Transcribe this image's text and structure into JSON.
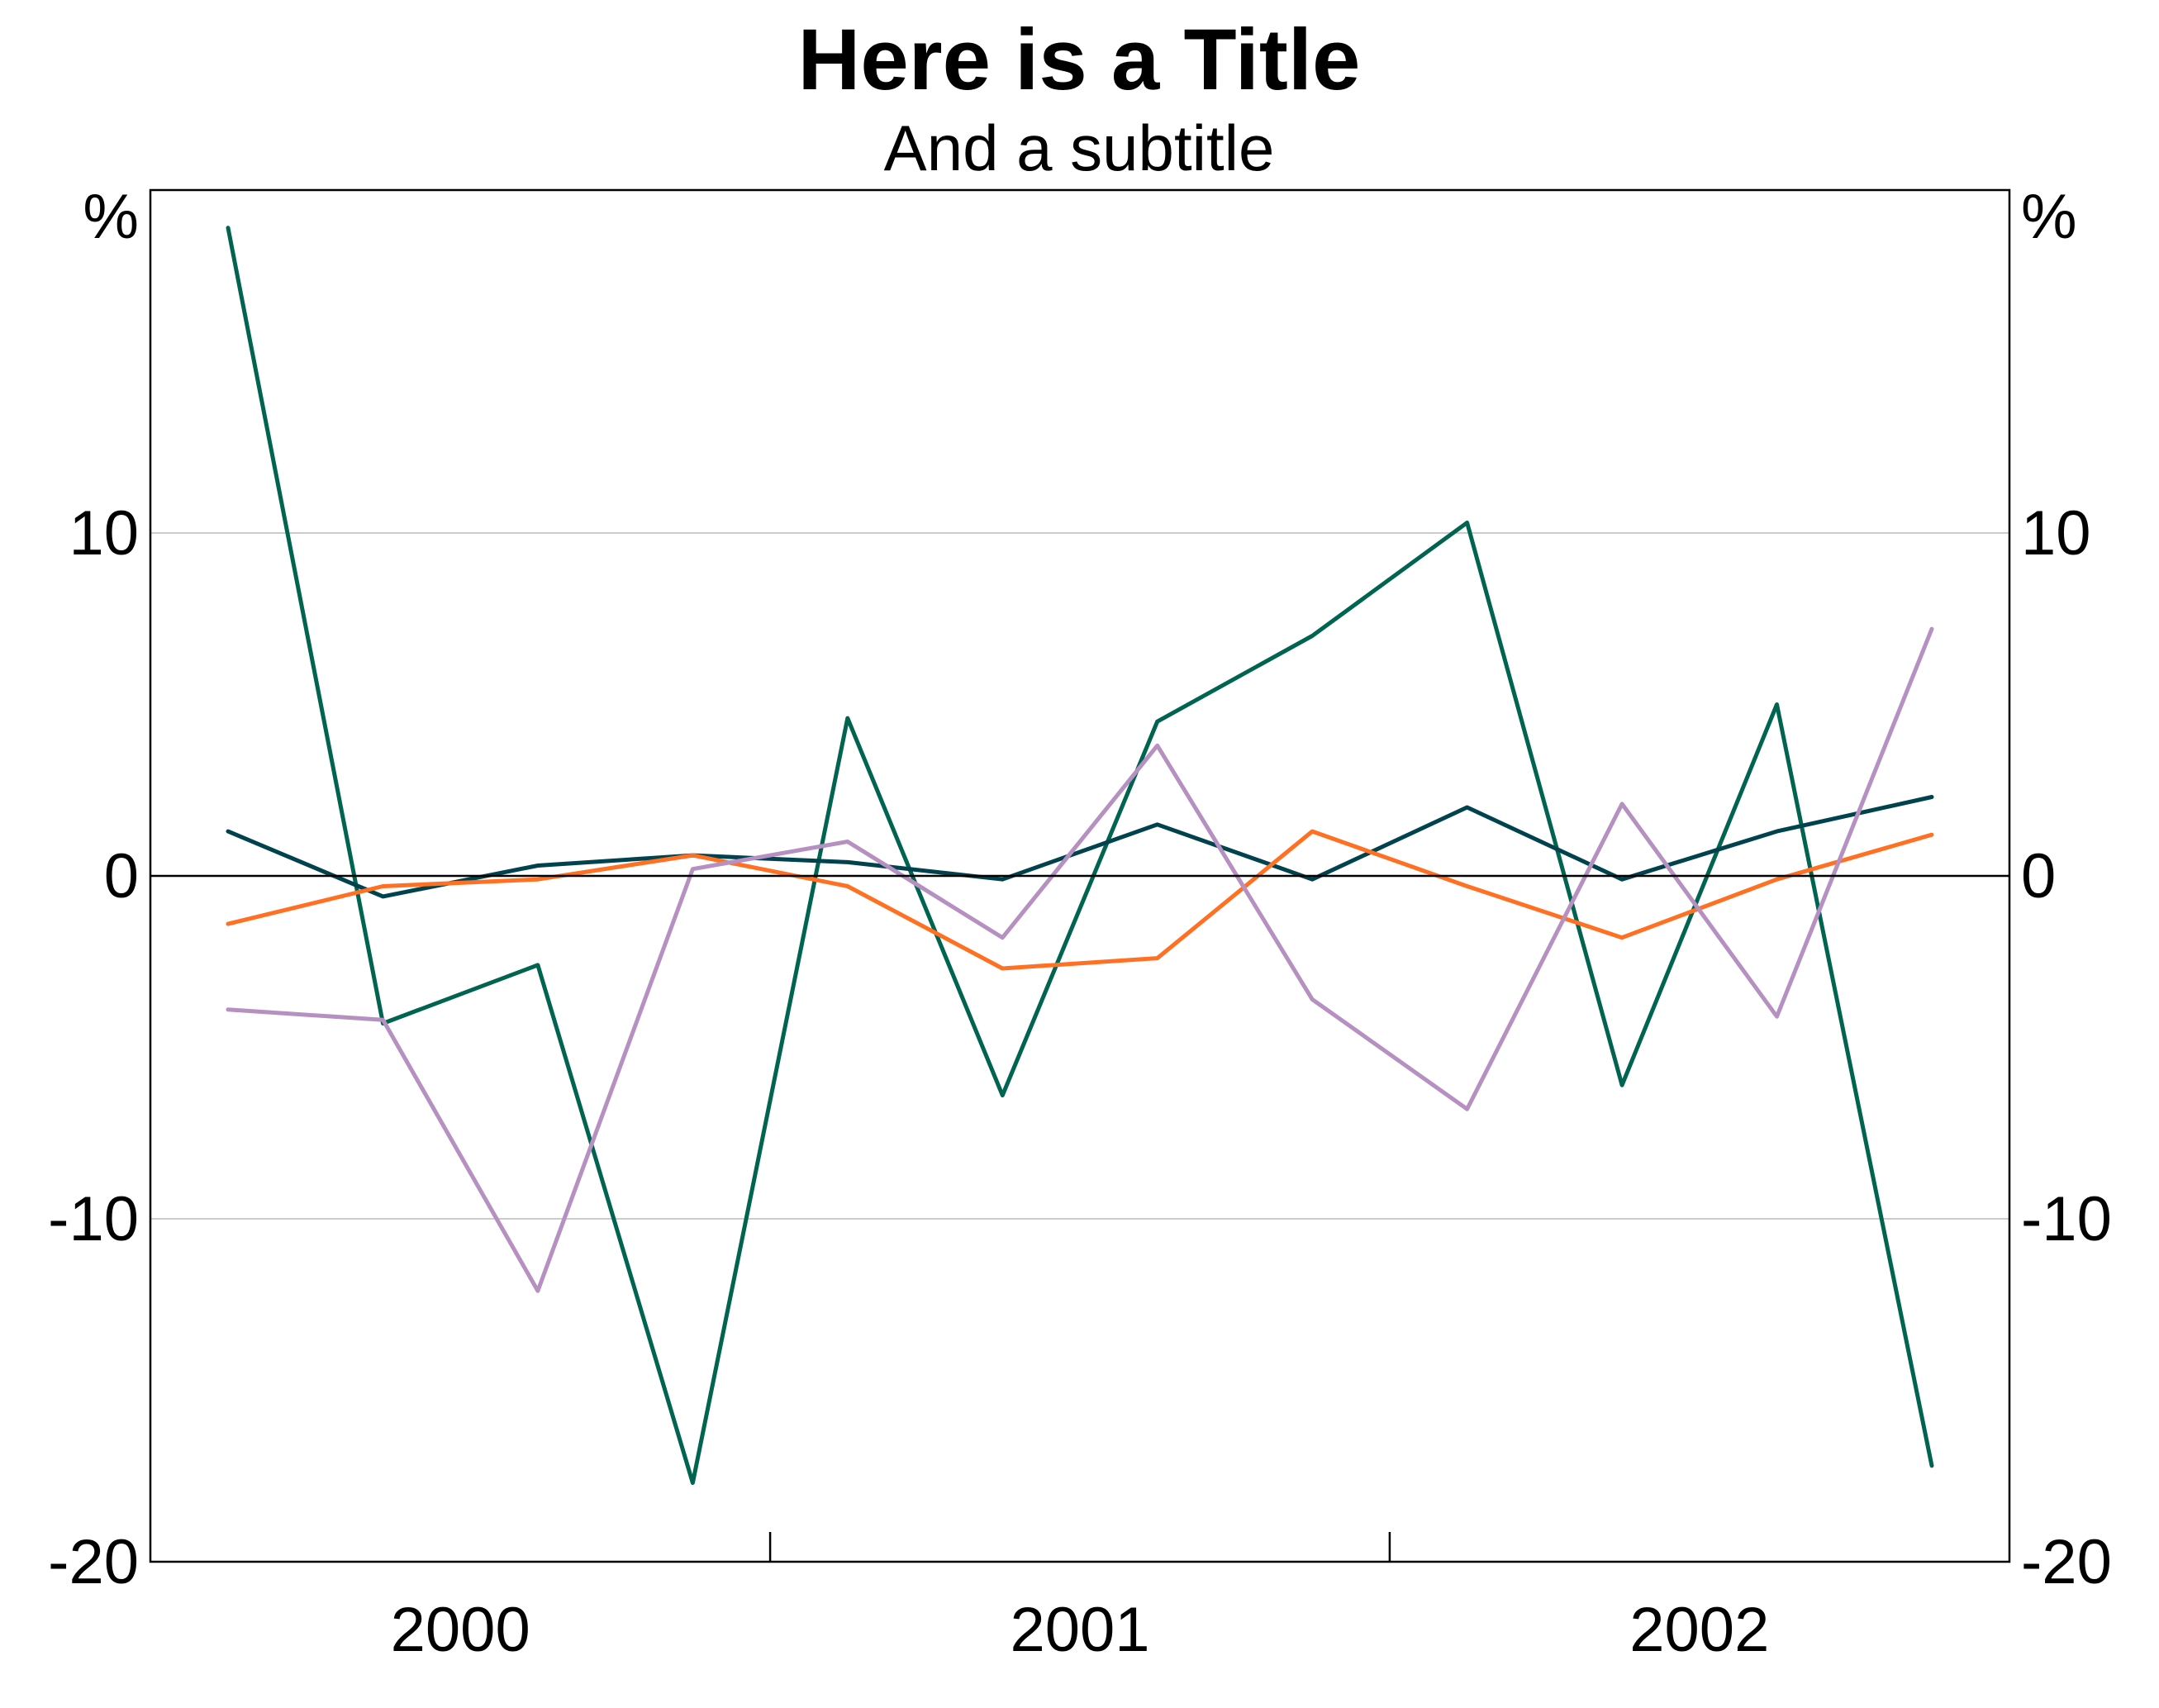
{
  "chart_data": {
    "type": "line",
    "title": "Here is a Title",
    "subtitle": "And a subtitle",
    "xlabel": "",
    "ylabel": "",
    "y_unit_left": "%",
    "y_unit_right": "%",
    "ylim": [
      -20,
      20
    ],
    "yticks": [
      "10",
      "0",
      "-10",
      "-20"
    ],
    "ytick_values": [
      10,
      0,
      -10,
      -20
    ],
    "x_period_labels": [
      "2000",
      "2001",
      "2002"
    ],
    "grid": true,
    "legend": "none",
    "x": [
      1,
      2,
      3,
      4,
      5,
      6,
      7,
      8,
      9,
      10,
      11,
      12
    ],
    "series": [
      {
        "color": "#006450",
        "values": [
          18.9,
          -4.3,
          -2.6,
          -17.7,
          4.6,
          -6.4,
          4.5,
          7.0,
          10.3,
          -6.1,
          5.0,
          -17.2
        ]
      },
      {
        "color": "#00434E",
        "values": [
          1.3,
          -0.6,
          0.3,
          0.6,
          0.4,
          -0.1,
          1.5,
          -0.1,
          2.0,
          -0.1,
          1.3,
          2.3
        ]
      },
      {
        "color": "#FF7022",
        "values": [
          -1.4,
          -0.3,
          -0.1,
          0.6,
          -0.3,
          -2.7,
          -2.4,
          1.3,
          -0.3,
          -1.8,
          -0.1,
          1.2
        ]
      },
      {
        "color": "#B690C1",
        "values": [
          -3.9,
          -4.2,
          -12.1,
          0.2,
          1.0,
          -1.8,
          3.8,
          -3.6,
          -6.8,
          2.1,
          -4.1,
          7.2
        ]
      }
    ]
  }
}
